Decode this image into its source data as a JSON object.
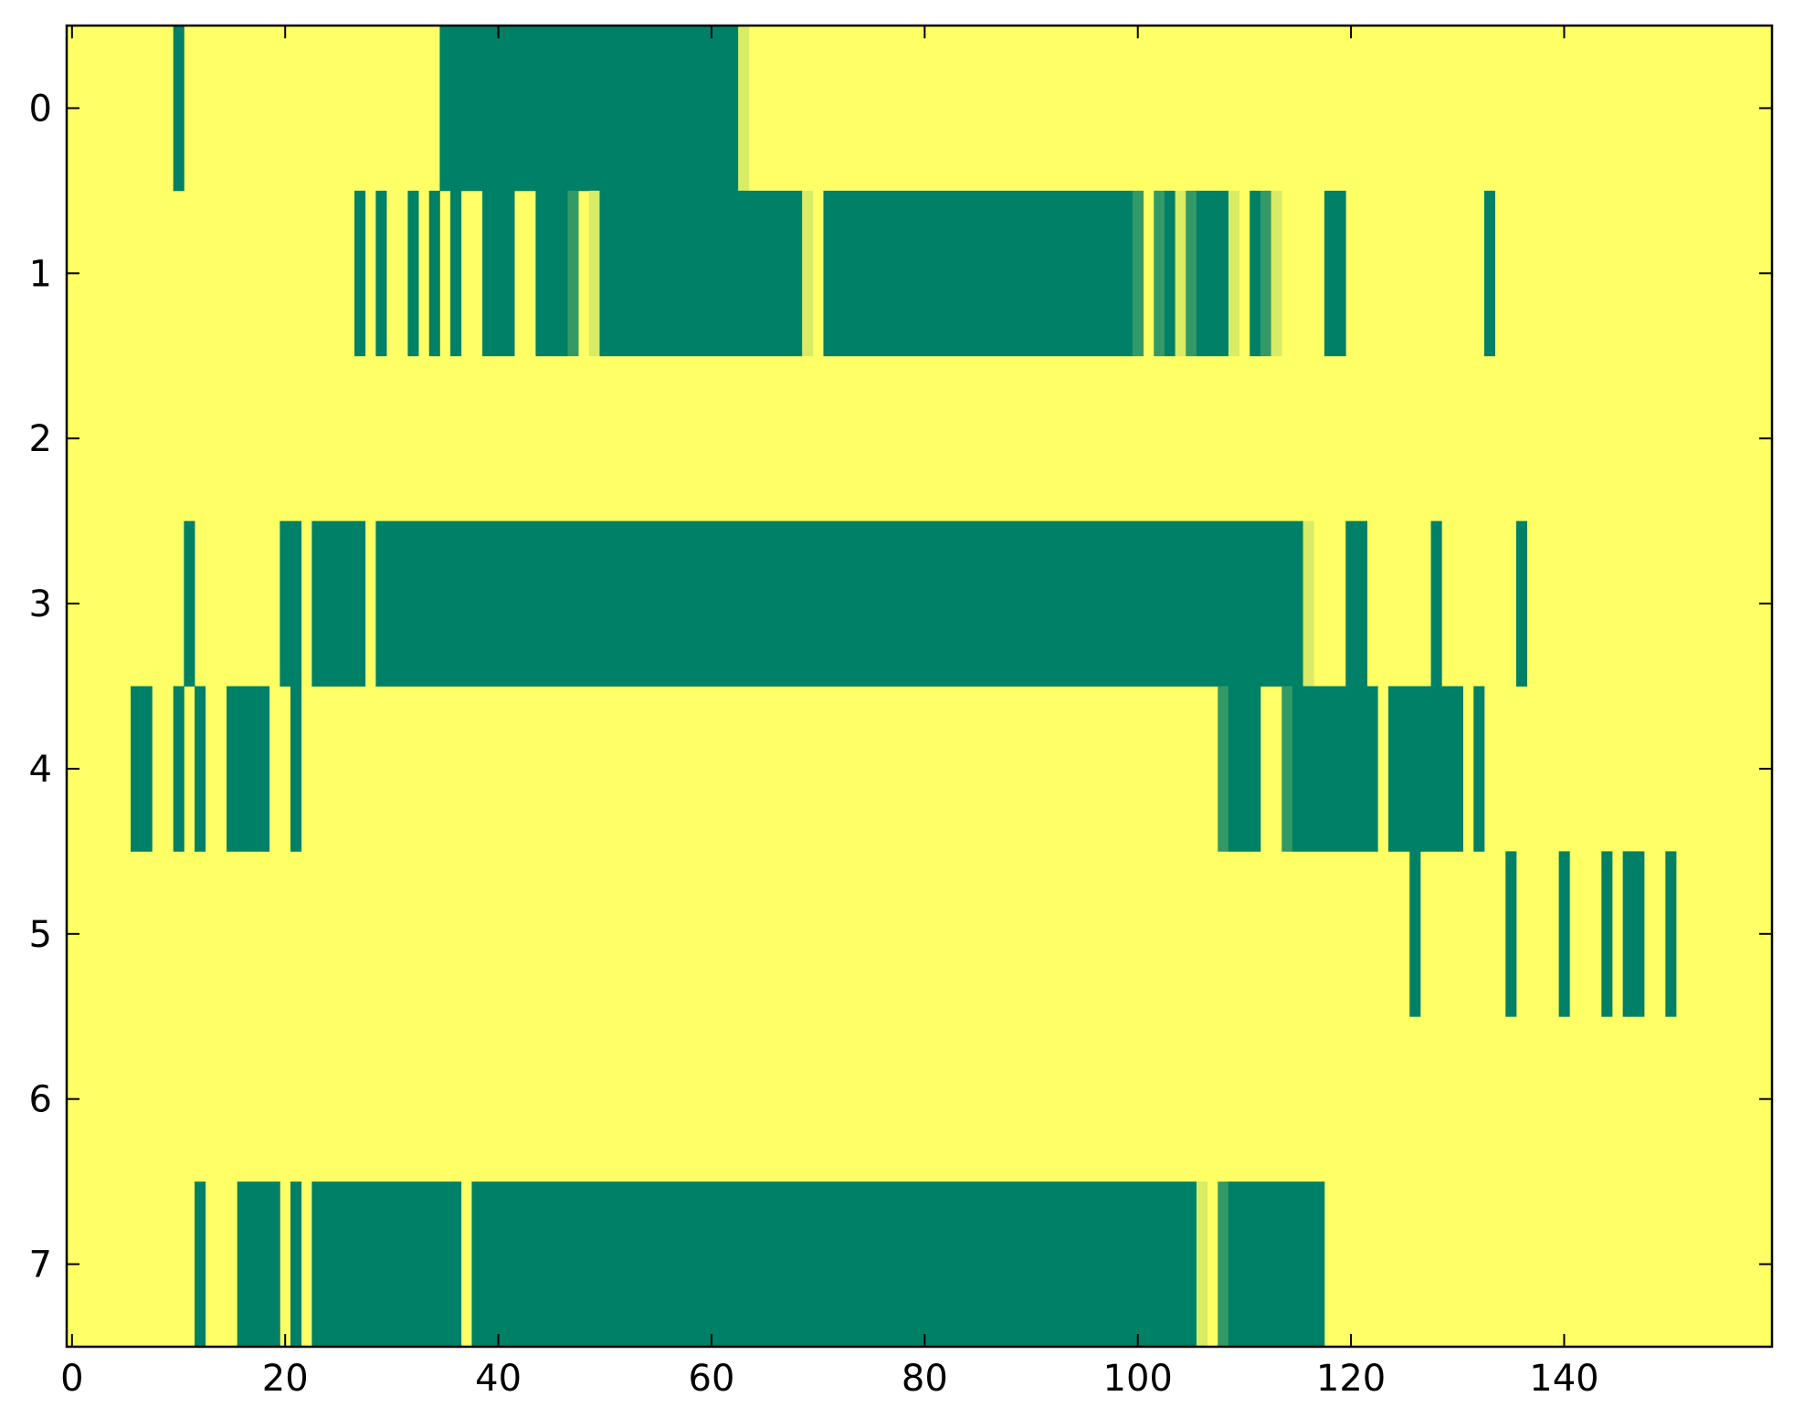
{
  "chart_data": {
    "type": "heatmap",
    "title": "",
    "xlabel": "",
    "ylabel": "",
    "xlim": [
      -0.5,
      159.5
    ],
    "ylim": [
      7.5,
      -0.5
    ],
    "x_ticks": [
      0,
      20,
      40,
      60,
      80,
      100,
      120,
      140
    ],
    "x_tick_labels": [
      "0",
      "20",
      "40",
      "60",
      "80",
      "100",
      "120",
      "140"
    ],
    "y_ticks": [
      0,
      1,
      2,
      3,
      4,
      5,
      6,
      7
    ],
    "y_tick_labels": [
      "0",
      "1",
      "2",
      "3",
      "4",
      "5",
      "6",
      "7"
    ],
    "columns": 160,
    "grid": false,
    "colormap": "summer_r",
    "colors": {
      "background": "#ffff66",
      "high": "#008066",
      "light_mid": "#d9ec66",
      "mid": "#339966"
    },
    "rows": [
      {
        "y": 0,
        "runs": [
          [
            10,
            10,
            1
          ],
          [
            35,
            62,
            1
          ],
          [
            63,
            63,
            0.25
          ]
        ]
      },
      {
        "y": 1,
        "runs": [
          [
            27,
            27,
            1
          ],
          [
            29,
            29,
            1
          ],
          [
            32,
            32,
            1
          ],
          [
            34,
            34,
            1
          ],
          [
            36,
            36,
            1
          ],
          [
            39,
            41,
            1
          ],
          [
            44,
            46,
            1
          ],
          [
            47,
            47,
            0.8
          ],
          [
            49,
            49,
            0.25
          ],
          [
            50,
            68,
            1
          ],
          [
            69,
            69,
            0.25
          ],
          [
            71,
            99,
            1
          ],
          [
            100,
            100,
            0.8
          ],
          [
            102,
            102,
            0.8
          ],
          [
            103,
            103,
            1
          ],
          [
            104,
            104,
            0.25
          ],
          [
            105,
            105,
            0.8
          ],
          [
            106,
            108,
            1
          ],
          [
            109,
            109,
            0.25
          ],
          [
            111,
            111,
            1
          ],
          [
            112,
            112,
            0.8
          ],
          [
            113,
            113,
            0.25
          ],
          [
            118,
            119,
            1
          ],
          [
            133,
            133,
            1
          ]
        ]
      },
      {
        "y": 2,
        "runs": []
      },
      {
        "y": 3,
        "runs": [
          [
            11,
            11,
            1
          ],
          [
            20,
            21,
            1
          ],
          [
            23,
            27,
            1
          ],
          [
            29,
            115,
            1
          ],
          [
            116,
            116,
            0.25
          ],
          [
            120,
            121,
            1
          ],
          [
            128,
            128,
            1
          ],
          [
            136,
            136,
            1
          ]
        ]
      },
      {
        "y": 4,
        "runs": [
          [
            6,
            7,
            1
          ],
          [
            10,
            10,
            1
          ],
          [
            12,
            12,
            1
          ],
          [
            15,
            18,
            1
          ],
          [
            21,
            21,
            1
          ],
          [
            108,
            108,
            0.8
          ],
          [
            109,
            111,
            1
          ],
          [
            114,
            114,
            0.8
          ],
          [
            115,
            122,
            1
          ],
          [
            124,
            130,
            1
          ],
          [
            132,
            132,
            1
          ]
        ]
      },
      {
        "y": 5,
        "runs": [
          [
            126,
            126,
            1
          ],
          [
            135,
            135,
            1
          ],
          [
            140,
            140,
            1
          ],
          [
            144,
            144,
            1
          ],
          [
            146,
            147,
            1
          ],
          [
            150,
            150,
            1
          ]
        ]
      },
      {
        "y": 6,
        "runs": []
      },
      {
        "y": 7,
        "runs": [
          [
            12,
            12,
            1
          ],
          [
            16,
            19,
            1
          ],
          [
            21,
            21,
            1
          ],
          [
            23,
            36,
            1
          ],
          [
            38,
            105,
            1
          ],
          [
            106,
            106,
            0.25
          ],
          [
            108,
            108,
            0.8
          ],
          [
            109,
            117,
            1
          ]
        ]
      }
    ]
  }
}
